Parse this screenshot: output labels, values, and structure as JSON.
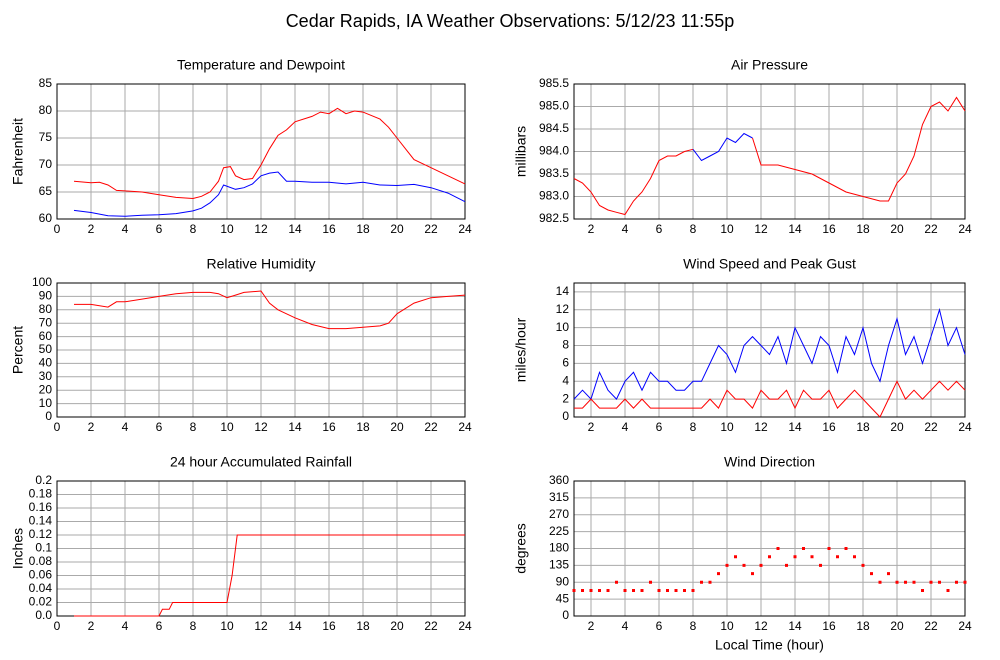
{
  "title": "Cedar Rapids, IA Weather Observations: 5/12/23 11:55p",
  "chart_data": [
    {
      "type": "line",
      "title": "Temperature and Dewpoint",
      "y_label": "Fahrenheit",
      "xlim": [
        0,
        24
      ],
      "xticks": [
        0,
        2,
        4,
        6,
        8,
        10,
        12,
        14,
        16,
        18,
        20,
        22,
        24
      ],
      "ylim": [
        60,
        85
      ],
      "yticks": [
        60,
        65,
        70,
        75,
        80,
        85
      ],
      "grid": true,
      "series": [
        {
          "color": "#ff0000",
          "x": [
            1,
            2,
            2.5,
            3,
            3.5,
            4,
            5,
            6,
            7,
            8,
            8.5,
            9,
            9.5,
            9.8,
            10.2,
            10.5,
            11,
            11.5,
            12,
            12.5,
            13,
            13.5,
            14,
            15,
            15.5,
            16,
            16.5,
            17,
            17.5,
            18,
            19,
            19.5,
            20,
            20.5,
            21,
            22,
            23,
            24
          ],
          "values": [
            67,
            66.7,
            66.8,
            66.3,
            65.3,
            65.2,
            65,
            64.5,
            64,
            63.8,
            64.2,
            65,
            67,
            69.5,
            69.7,
            68,
            67.3,
            67.5,
            70,
            73,
            75.5,
            76.5,
            78,
            79,
            79.8,
            79.5,
            80.5,
            79.5,
            80,
            79.8,
            78.5,
            77,
            75,
            73,
            71,
            69.5,
            68,
            66.5
          ]
        },
        {
          "color": "#0000ff",
          "x": [
            1,
            2,
            3,
            4,
            5,
            6,
            7,
            8,
            8.5,
            9,
            9.5,
            9.8,
            10.5,
            11,
            11.5,
            12,
            12.5,
            13,
            13.5,
            14,
            15,
            16,
            17,
            18,
            19,
            20,
            21,
            22,
            23,
            24
          ],
          "values": [
            61.6,
            61.2,
            60.6,
            60.5,
            60.7,
            60.8,
            61,
            61.5,
            62,
            63,
            64.5,
            66.3,
            65.5,
            65.8,
            66.5,
            68,
            68.5,
            68.7,
            67,
            67,
            66.8,
            66.8,
            66.5,
            66.8,
            66.3,
            66.2,
            66.4,
            65.8,
            64.8,
            63.2
          ]
        }
      ]
    },
    {
      "type": "line",
      "title": "Air Pressure",
      "y_label": "millibars",
      "xlim": [
        1,
        24
      ],
      "xticks": [
        2,
        4,
        6,
        8,
        10,
        12,
        14,
        16,
        18,
        20,
        22,
        24
      ],
      "ylim": [
        982.5,
        985.5
      ],
      "yticks": [
        982.5,
        {
          "value": 983,
          "label": "983.0"
        },
        983.5,
        {
          "value": 984,
          "label": "984.0"
        },
        984.5,
        {
          "value": 985,
          "label": "985.0"
        },
        985.5
      ],
      "grid": true,
      "series": [
        {
          "color": "#ff0000",
          "x": [
            1,
            1.5,
            2,
            2.5,
            3,
            3.5,
            4,
            4.5,
            5,
            5.5,
            6,
            6.5,
            7,
            7.5,
            8
          ],
          "values": [
            983.4,
            983.3,
            983.1,
            982.8,
            982.7,
            982.65,
            982.6,
            982.9,
            983.1,
            983.4,
            983.8,
            983.9,
            983.9,
            984.0,
            984.05
          ]
        },
        {
          "color": "#0000ff",
          "x": [
            8,
            8.5,
            9,
            9.5,
            10,
            10.5,
            11,
            11.5
          ],
          "values": [
            984.05,
            983.8,
            983.9,
            984.0,
            984.3,
            984.2,
            984.4,
            984.3
          ]
        },
        {
          "color": "#ff0000",
          "x": [
            11.5,
            12,
            13,
            14,
            15,
            16,
            17,
            18,
            19,
            19.5,
            20,
            20.5,
            21,
            21.5,
            22,
            22.5,
            23,
            23.5,
            24
          ],
          "values": [
            984.3,
            983.7,
            983.7,
            983.6,
            983.5,
            983.3,
            983.1,
            983.0,
            982.9,
            982.9,
            983.3,
            983.5,
            983.9,
            984.6,
            985.0,
            985.1,
            984.9,
            985.2,
            984.9
          ]
        }
      ]
    },
    {
      "type": "line",
      "title": "Relative Humidity",
      "y_label": "Percent",
      "xlim": [
        0,
        24
      ],
      "xticks": [
        0,
        2,
        4,
        6,
        8,
        10,
        12,
        14,
        16,
        18,
        20,
        22,
        24
      ],
      "ylim": [
        0,
        100
      ],
      "yticks": [
        0,
        10,
        20,
        30,
        40,
        50,
        60,
        70,
        80,
        90,
        100
      ],
      "grid": true,
      "series": [
        {
          "color": "#ff0000",
          "x": [
            1,
            2,
            3,
            3.5,
            4,
            5,
            6,
            7,
            8,
            9,
            9.5,
            10,
            10.5,
            11,
            12,
            12.5,
            13,
            14,
            15,
            16,
            17,
            18,
            19,
            19.5,
            20,
            21,
            22,
            23,
            24
          ],
          "values": [
            84,
            84,
            82,
            86,
            86,
            88,
            90,
            92,
            93,
            93,
            92,
            89,
            91,
            93,
            94,
            85,
            80,
            74,
            69,
            66,
            66,
            67,
            68,
            70,
            77,
            85,
            89,
            90,
            91
          ]
        }
      ]
    },
    {
      "type": "line",
      "title": "Wind Speed and Peak Gust",
      "y_label": "miles/hour",
      "xlim": [
        1,
        24
      ],
      "xticks": [
        2,
        4,
        6,
        8,
        10,
        12,
        14,
        16,
        18,
        20,
        22,
        24
      ],
      "ylim": [
        0,
        15
      ],
      "yticks": [
        0,
        2,
        4,
        6,
        8,
        10,
        12,
        14
      ],
      "grid": true,
      "series": [
        {
          "color": "#0000ff",
          "x": [
            1,
            1.5,
            2,
            2.5,
            3,
            3.5,
            4,
            4.5,
            5,
            5.5,
            6,
            6.5,
            7,
            7.5,
            8,
            8.5,
            9,
            9.5,
            10,
            10.5,
            11,
            11.5,
            12,
            12.5,
            13,
            13.5,
            14,
            14.5,
            15,
            15.5,
            16,
            16.5,
            17,
            17.5,
            18,
            18.5,
            19,
            19.5,
            20,
            20.5,
            21,
            21.5,
            22,
            22.5,
            23,
            23.5,
            24
          ],
          "values": [
            2,
            3,
            2,
            5,
            3,
            2,
            4,
            5,
            3,
            5,
            4,
            4,
            3,
            3,
            4,
            4,
            6,
            8,
            7,
            5,
            8,
            9,
            8,
            7,
            9,
            6,
            10,
            8,
            6,
            9,
            8,
            5,
            9,
            7,
            10,
            6,
            4,
            8,
            11,
            7,
            9,
            6,
            9,
            12,
            8,
            10,
            7
          ]
        },
        {
          "color": "#ff0000",
          "x": [
            1,
            1.5,
            2,
            2.5,
            3,
            3.5,
            4,
            4.5,
            5,
            5.5,
            6,
            6.5,
            7,
            7.5,
            8,
            8.5,
            9,
            9.5,
            10,
            10.5,
            11,
            11.5,
            12,
            12.5,
            13,
            13.5,
            14,
            14.5,
            15,
            15.5,
            16,
            16.5,
            17,
            17.5,
            18,
            18.5,
            19,
            19.5,
            20,
            20.5,
            21,
            21.5,
            22,
            22.5,
            23,
            23.5,
            24
          ],
          "values": [
            1,
            1,
            2,
            1,
            1,
            1,
            2,
            1,
            2,
            1,
            1,
            1,
            1,
            1,
            1,
            1,
            2,
            1,
            3,
            2,
            2,
            1,
            3,
            2,
            2,
            3,
            1,
            3,
            2,
            2,
            3,
            1,
            2,
            3,
            2,
            1,
            0,
            2,
            4,
            2,
            3,
            2,
            3,
            4,
            3,
            4,
            3
          ]
        }
      ]
    },
    {
      "type": "line",
      "title": "24 hour Accumulated Rainfall",
      "y_label": "Inches",
      "xlim": [
        0,
        24
      ],
      "xticks": [
        0,
        2,
        4,
        6,
        8,
        10,
        12,
        14,
        16,
        18,
        20,
        22,
        24
      ],
      "ylim": [
        0,
        0.2
      ],
      "yticks": [
        {
          "value": 0,
          "label": "0.0"
        },
        0.02,
        0.04,
        0.06,
        0.08,
        0.1,
        0.12,
        0.14,
        0.16,
        0.18,
        0.2
      ],
      "grid": true,
      "series": [
        {
          "color": "#ff0000",
          "x": [
            1,
            6,
            6.2,
            6.6,
            6.8,
            10,
            10.3,
            10.6,
            24
          ],
          "values": [
            0,
            0,
            0.01,
            0.01,
            0.02,
            0.02,
            0.06,
            0.12,
            0.12
          ]
        }
      ]
    },
    {
      "type": "scatter",
      "title": "Wind Direction",
      "y_label": "degrees",
      "x_label": "Local Time (hour)",
      "xlim": [
        1,
        24
      ],
      "xticks": [
        2,
        4,
        6,
        8,
        10,
        12,
        14,
        16,
        18,
        20,
        22,
        24
      ],
      "ylim": [
        0,
        360
      ],
      "yticks": [
        0,
        45,
        90,
        135,
        180,
        225,
        270,
        315,
        360
      ],
      "grid": true,
      "series": [
        {
          "color": "#ff0000",
          "x": [
            1,
            1.5,
            2,
            2.5,
            3,
            3.5,
            4,
            4.5,
            5,
            5.5,
            6,
            6.5,
            7,
            7.5,
            8,
            8.5,
            9,
            9.5,
            10,
            10.5,
            11,
            11.5,
            12,
            12.5,
            13,
            13.5,
            14,
            14.5,
            15,
            15.5,
            16,
            16.5,
            17,
            17.5,
            18,
            18.5,
            19,
            19.5,
            20,
            20.5,
            21,
            21.5,
            22,
            22.5,
            23,
            23.5,
            24
          ],
          "values": [
            68,
            68,
            68,
            68,
            68,
            90,
            68,
            68,
            68,
            90,
            68,
            68,
            68,
            68,
            68,
            90,
            90,
            113,
            135,
            158,
            135,
            113,
            135,
            158,
            180,
            135,
            158,
            180,
            158,
            135,
            180,
            158,
            180,
            158,
            135,
            113,
            90,
            113,
            90,
            90,
            90,
            68,
            90,
            90,
            68,
            90,
            90
          ]
        }
      ]
    }
  ]
}
